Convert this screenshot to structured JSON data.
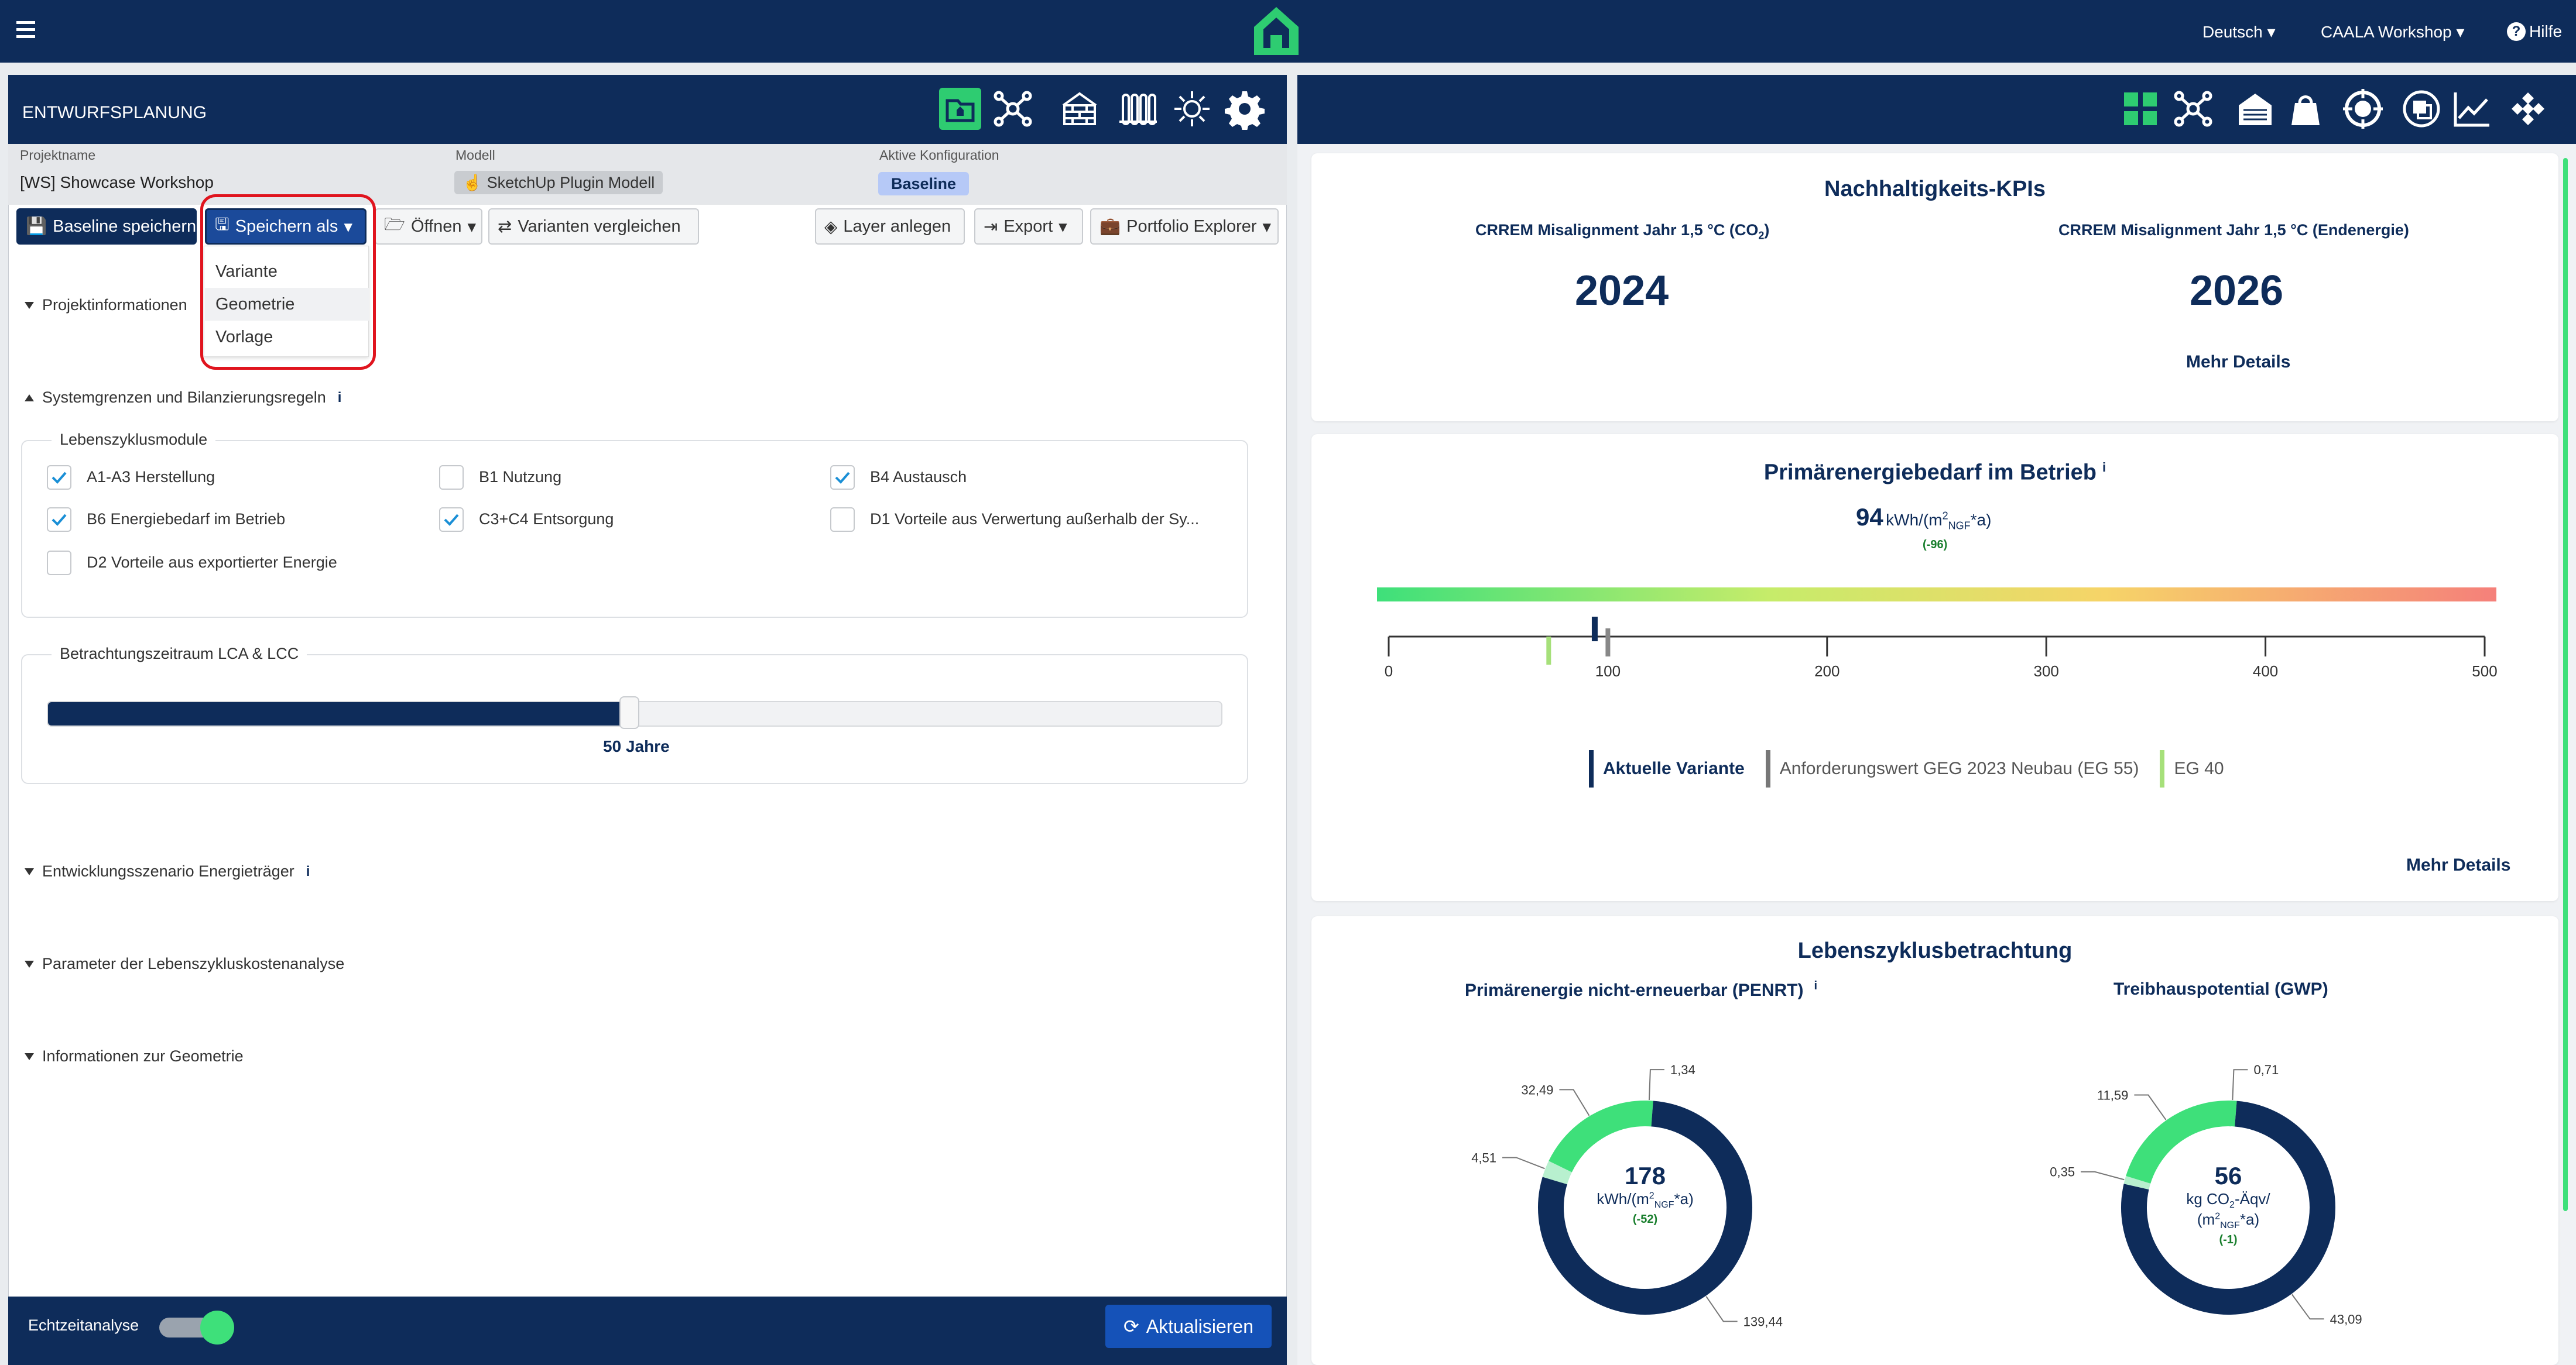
{
  "topbar": {
    "menu_icon": "menu-icon",
    "logo_icon": "house-logo-icon",
    "language": "Deutsch",
    "workshop": "CAALA Workshop",
    "help": "Hilfe"
  },
  "left": {
    "title": "ENTWURFSPLANUNG",
    "info": {
      "projektname_label": "Projektname",
      "projektname": "[WS] Showcase Workshop",
      "modell_label": "Modell",
      "modell": "SketchUp Plugin Modell",
      "konfig_label": "Aktive Konfiguration",
      "konfig": "Baseline"
    },
    "toolbar": {
      "baseline_save": "Baseline speichern",
      "save_as": "Speichern als",
      "open": "Öffnen",
      "compare": "Varianten vergleichen",
      "layer": "Layer anlegen",
      "export": "Export",
      "portfolio": "Portfolio Explorer"
    },
    "dropdown": [
      "Variante",
      "Geometrie",
      "Vorlage"
    ],
    "sections": {
      "projekt": "Projektinformationen",
      "system": "Systemgrenzen und Bilanzierungsregeln",
      "entwicklung": "Entwicklungsszenario Energieträger",
      "parameter": "Parameter der Lebenszykluskostenanalyse",
      "geometrie": "Informationen zur Geometrie"
    },
    "lebenszyklus": {
      "title": "Lebenszyklusmodule",
      "items": [
        {
          "label": "A1-A3 Herstellung",
          "checked": true
        },
        {
          "label": "B1 Nutzung",
          "checked": false
        },
        {
          "label": "B4 Austausch",
          "checked": true
        },
        {
          "label": "B6 Energiebedarf im Betrieb",
          "checked": true
        },
        {
          "label": "C3+C4 Entsorgung",
          "checked": true
        },
        {
          "label": "D1 Vorteile aus Verwertung außerhalb der Sy...",
          "checked": false
        },
        {
          "label": "D2 Vorteile aus exportierter Energie",
          "checked": false
        }
      ]
    },
    "zeitraum": {
      "title": "Betrachtungszeitraum LCA & LCC",
      "value_label": "50 Jahre",
      "fraction": 0.49
    },
    "footer": {
      "echtzeit": "Echtzeitanalyse",
      "aktualisieren": "Aktualisieren",
      "toggle_on": true
    }
  },
  "right": {
    "kpi": {
      "title": "Nachhaltigkeits-KPIs",
      "label1": "CRREM Misalignment Jahr 1,5 °C (CO",
      "label1_sub": "2",
      "label1_end": ")",
      "value1": "2024",
      "label2": "CRREM Misalignment Jahr 1,5 °C (Endenergie)",
      "value2": "2026",
      "more": "Mehr Details"
    },
    "pe": {
      "title": "Primärenergiebedarf im Betrieb",
      "info": "i",
      "value": "94",
      "unit_a": "kWh/(m",
      "unit_sup": "2",
      "unit_sub": "NGF",
      "unit_b": "*a)",
      "delta": "(-96)",
      "ticks": [
        "0",
        "100",
        "200",
        "300",
        "400",
        "500"
      ],
      "scale_max": 500,
      "current": 94,
      "requirement": 100,
      "eg40": 73,
      "legend": {
        "current": "Aktuelle Variante",
        "req": "Anforderungswert GEG 2023 Neubau (EG 55)",
        "eg40": "EG 40"
      },
      "more": "Mehr Details"
    },
    "lz": {
      "title": "Lebenszyklusbetrachtung",
      "penrt": {
        "title": "Primärenergie nicht-erneuerbar (PENRT)",
        "info": "i",
        "value": "178",
        "unit_a": "kWh/(m",
        "unit_sup": "2",
        "unit_sub": "NGF",
        "unit_b": "*a)",
        "delta": "(-52)",
        "slices": [
          {
            "label": "1,34",
            "value": 1.34
          },
          {
            "label": "139,44",
            "value": 139.44
          },
          {
            "label": "4,51",
            "value": 4.51
          },
          {
            "label": "32,49",
            "value": 32.49
          }
        ]
      },
      "gwp": {
        "title": "Treibhauspotential (GWP)",
        "value": "56",
        "unit_a": "kg CO",
        "unit_sub1": "2",
        "unit_a2": "-Äqv/",
        "unit_b": "(m",
        "unit_sup": "2",
        "unit_sub": "NGF",
        "unit_c": "*a)",
        "delta": "(-1)",
        "slices": [
          {
            "label": "0,71",
            "value": 0.71
          },
          {
            "label": "43,09",
            "value": 43.09
          },
          {
            "label": "0,35",
            "value": 0.35
          },
          {
            "label": "11,59",
            "value": 11.59
          }
        ]
      }
    }
  },
  "colors": {
    "navy": "#0e2c5a",
    "green": "#3ee07a",
    "lightgreen": "#a6e07a",
    "accent": "#27ae60"
  }
}
